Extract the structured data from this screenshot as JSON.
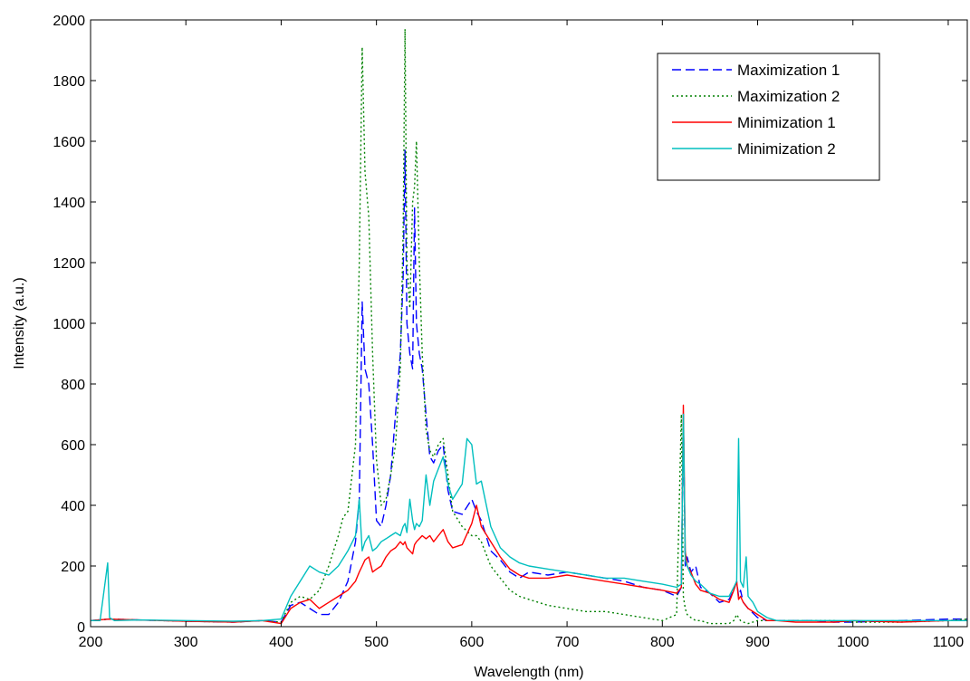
{
  "chart_data": {
    "type": "line",
    "xlabel": "Wavelength (nm)",
    "ylabel": "Intensity (a.u.)",
    "xlim": [
      200,
      1120
    ],
    "ylim": [
      0,
      2000
    ],
    "xticks": [
      200,
      300,
      400,
      500,
      600,
      700,
      800,
      900,
      1000,
      1100
    ],
    "yticks": [
      0,
      200,
      400,
      600,
      800,
      1000,
      1200,
      1400,
      1600,
      1800,
      2000
    ],
    "legend_position": "top-right",
    "grid": false,
    "series": [
      {
        "name": "Maximization 1",
        "color": "#0000ff",
        "dash": "dashed",
        "x": [
          200,
          220,
          250,
          300,
          350,
          380,
          400,
          410,
          420,
          430,
          440,
          450,
          460,
          470,
          478,
          482,
          485,
          488,
          492,
          496,
          500,
          505,
          510,
          515,
          520,
          525,
          528,
          530,
          532,
          535,
          538,
          540,
          542,
          545,
          548,
          552,
          556,
          560,
          565,
          570,
          575,
          580,
          590,
          600,
          605,
          610,
          620,
          630,
          640,
          650,
          660,
          680,
          700,
          720,
          740,
          760,
          780,
          800,
          815,
          820,
          822,
          824,
          826,
          830,
          835,
          840,
          850,
          860,
          870,
          875,
          878,
          880,
          882,
          885,
          890,
          900,
          910,
          920,
          940,
          960,
          980,
          1000,
          1050,
          1100,
          1120
        ],
        "y": [
          20,
          25,
          22,
          18,
          15,
          20,
          15,
          70,
          80,
          60,
          40,
          40,
          80,
          150,
          280,
          420,
          1070,
          850,
          800,
          600,
          350,
          330,
          400,
          500,
          700,
          900,
          1150,
          1570,
          1000,
          900,
          850,
          1380,
          1000,
          900,
          850,
          700,
          560,
          540,
          580,
          600,
          450,
          380,
          370,
          420,
          380,
          350,
          250,
          220,
          180,
          160,
          180,
          170,
          180,
          170,
          160,
          150,
          130,
          120,
          100,
          130,
          700,
          200,
          230,
          180,
          200,
          130,
          110,
          80,
          90,
          120,
          150,
          100,
          120,
          80,
          60,
          30,
          20,
          20,
          20,
          20,
          15,
          15,
          20,
          25,
          25
        ]
      },
      {
        "name": "Maximization 2",
        "color": "#008000",
        "dash": "dotted",
        "x": [
          200,
          220,
          250,
          300,
          350,
          380,
          400,
          410,
          420,
          430,
          440,
          450,
          460,
          465,
          470,
          478,
          482,
          485,
          488,
          492,
          496,
          500,
          505,
          510,
          515,
          520,
          525,
          528,
          530,
          532,
          535,
          538,
          540,
          542,
          545,
          548,
          552,
          556,
          560,
          565,
          570,
          575,
          580,
          590,
          600,
          605,
          610,
          620,
          630,
          640,
          650,
          660,
          680,
          700,
          720,
          740,
          760,
          780,
          800,
          815,
          820,
          822,
          824,
          826,
          830,
          835,
          840,
          850,
          860,
          870,
          875,
          878,
          880,
          882,
          885,
          890,
          900,
          910,
          920,
          940,
          960,
          980,
          1000,
          1050,
          1100,
          1120
        ],
        "y": [
          20,
          25,
          22,
          18,
          15,
          20,
          15,
          80,
          100,
          90,
          120,
          200,
          300,
          360,
          380,
          600,
          1200,
          1910,
          1500,
          1350,
          900,
          550,
          400,
          420,
          500,
          600,
          850,
          1300,
          1970,
          1200,
          1050,
          1400,
          1450,
          1600,
          1200,
          900,
          650,
          580,
          560,
          600,
          620,
          500,
          380,
          330,
          300,
          300,
          280,
          200,
          160,
          120,
          100,
          90,
          70,
          60,
          50,
          50,
          40,
          30,
          20,
          40,
          700,
          100,
          60,
          40,
          30,
          20,
          20,
          10,
          10,
          10,
          20,
          40,
          30,
          20,
          15,
          10,
          20,
          20,
          20,
          20,
          20,
          20,
          15,
          15,
          20,
          25
        ]
      },
      {
        "name": "Minimization 1",
        "color": "#ff0000",
        "dash": "solid",
        "x": [
          200,
          220,
          250,
          300,
          350,
          380,
          400,
          410,
          420,
          430,
          440,
          450,
          460,
          470,
          478,
          482,
          485,
          488,
          492,
          496,
          500,
          505,
          510,
          515,
          520,
          525,
          528,
          530,
          532,
          535,
          538,
          540,
          542,
          545,
          548,
          552,
          556,
          560,
          565,
          570,
          575,
          580,
          590,
          600,
          605,
          610,
          620,
          630,
          640,
          650,
          660,
          680,
          700,
          720,
          740,
          760,
          780,
          800,
          815,
          820,
          822,
          824,
          826,
          830,
          835,
          840,
          850,
          860,
          870,
          875,
          878,
          880,
          882,
          885,
          890,
          900,
          910,
          920,
          940,
          960,
          980,
          1000,
          1050,
          1100,
          1120
        ],
        "y": [
          20,
          25,
          22,
          18,
          15,
          20,
          10,
          60,
          80,
          90,
          60,
          80,
          100,
          120,
          150,
          180,
          200,
          220,
          230,
          180,
          190,
          200,
          230,
          250,
          260,
          280,
          270,
          280,
          260,
          250,
          240,
          270,
          280,
          290,
          300,
          290,
          300,
          280,
          300,
          320,
          280,
          260,
          270,
          340,
          400,
          330,
          280,
          230,
          190,
          170,
          160,
          160,
          170,
          160,
          150,
          140,
          130,
          120,
          110,
          130,
          730,
          250,
          200,
          180,
          140,
          120,
          110,
          90,
          80,
          120,
          150,
          90,
          100,
          80,
          60,
          40,
          20,
          20,
          15,
          15,
          15,
          20,
          15,
          20,
          20
        ]
      },
      {
        "name": "Minimization 2",
        "color": "#00bfbf",
        "dash": "solid",
        "x": [
          200,
          210,
          218,
          220,
          225,
          250,
          300,
          350,
          380,
          400,
          410,
          420,
          430,
          440,
          450,
          460,
          470,
          478,
          482,
          485,
          488,
          492,
          496,
          500,
          505,
          510,
          515,
          520,
          525,
          528,
          530,
          532,
          535,
          538,
          540,
          542,
          545,
          548,
          552,
          556,
          560,
          565,
          570,
          575,
          580,
          590,
          595,
          600,
          605,
          610,
          620,
          630,
          640,
          650,
          660,
          680,
          700,
          720,
          740,
          760,
          780,
          800,
          815,
          820,
          822,
          824,
          826,
          830,
          835,
          840,
          850,
          860,
          870,
          875,
          878,
          880,
          882,
          885,
          888,
          890,
          895,
          900,
          910,
          920,
          940,
          960,
          980,
          1000,
          1050,
          1100,
          1120
        ],
        "y": [
          20,
          20,
          210,
          30,
          20,
          22,
          20,
          18,
          20,
          25,
          100,
          150,
          200,
          180,
          170,
          200,
          250,
          300,
          420,
          250,
          280,
          300,
          250,
          260,
          280,
          290,
          300,
          310,
          300,
          330,
          340,
          310,
          420,
          350,
          320,
          340,
          330,
          350,
          500,
          400,
          480,
          520,
          560,
          470,
          420,
          470,
          620,
          600,
          470,
          480,
          330,
          260,
          230,
          210,
          200,
          190,
          180,
          170,
          160,
          160,
          150,
          140,
          130,
          140,
          700,
          220,
          200,
          170,
          150,
          140,
          110,
          100,
          100,
          130,
          150,
          620,
          150,
          130,
          230,
          100,
          80,
          50,
          30,
          20,
          20,
          20,
          20,
          20,
          20,
          20,
          20
        ]
      }
    ]
  }
}
